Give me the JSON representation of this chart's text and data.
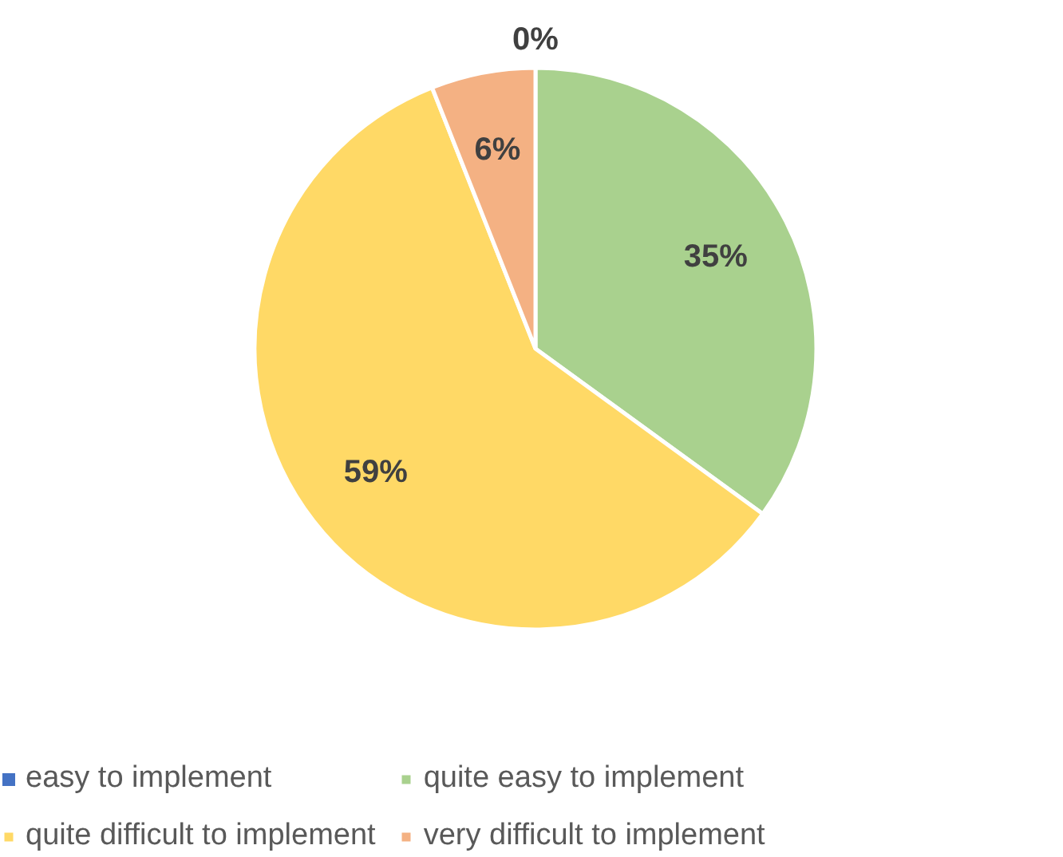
{
  "chart_data": {
    "type": "pie",
    "categories": [
      "easy to implement",
      "quite easy to implement",
      "quite difficult to implement",
      "very difficult to implement"
    ],
    "values": [
      0,
      35,
      59,
      6
    ],
    "value_labels": [
      "0%",
      "35%",
      "59%",
      "6%"
    ],
    "colors": [
      "#4472c4",
      "#a9d18e",
      "#ffd966",
      "#f4b183"
    ],
    "legend": "bottom"
  }
}
